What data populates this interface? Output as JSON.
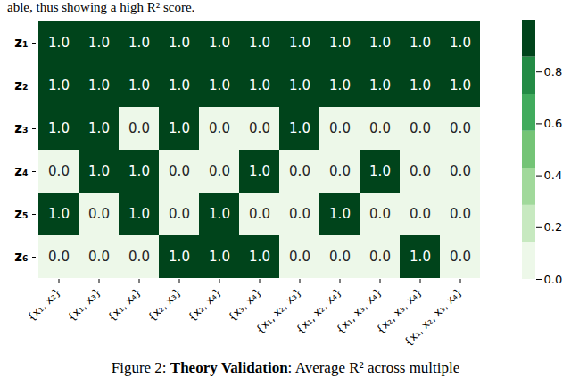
{
  "chart_data": {
    "type": "heatmap",
    "annotations": [
      "able, thus showing a high R² score."
    ],
    "caption": [
      {
        "text": "Figure 2: ",
        "bold": false
      },
      {
        "text": "Theory Validation",
        "bold": true
      },
      {
        "text": ": Average R² across multiple",
        "bold": false
      }
    ],
    "rows": [
      "z₁",
      "z₂",
      "z₃",
      "z₄",
      "z₅",
      "z₆"
    ],
    "columns": [
      "{x₁, x₂}",
      "{x₁, x₃}",
      "{x₁, x₄}",
      "{x₂, x₃}",
      "{x₂, x₄}",
      "{x₃, x₄}",
      "{x₁, x₂, x₃}",
      "{x₁, x₂, x₄}",
      "{x₁, x₃, x₄}",
      "{x₂, x₃, x₄}",
      "{x₁, x₂, x₃, x₄}"
    ],
    "cells": [
      [
        1,
        1,
        1,
        1,
        1,
        1,
        1,
        1,
        1,
        1,
        1
      ],
      [
        1,
        1,
        1,
        1,
        1,
        1,
        1,
        1,
        1,
        1,
        1
      ],
      [
        1,
        1,
        0,
        1,
        0,
        0,
        1,
        0,
        0,
        0,
        0
      ],
      [
        0,
        1,
        1,
        0,
        0,
        1,
        0,
        0,
        1,
        0,
        0
      ],
      [
        1,
        0,
        1,
        0,
        1,
        0,
        0,
        1,
        0,
        0,
        0
      ],
      [
        0,
        0,
        0,
        1,
        1,
        1,
        0,
        0,
        0,
        1,
        0
      ]
    ],
    "value_labels": [
      [
        "1.0",
        "1.0",
        "1.0",
        "1.0",
        "1.0",
        "1.0",
        "1.0",
        "1.0",
        "1.0",
        "1.0",
        "1.0"
      ],
      [
        "1.0",
        "1.0",
        "1.0",
        "1.0",
        "1.0",
        "1.0",
        "1.0",
        "1.0",
        "1.0",
        "1.0",
        "1.0"
      ],
      [
        "1.0",
        "1.0",
        "0.0",
        "1.0",
        "0.0",
        "0.0",
        "1.0",
        "0.0",
        "0.0",
        "0.0",
        "0.0"
      ],
      [
        "0.0",
        "1.0",
        "1.0",
        "0.0",
        "0.0",
        "1.0",
        "0.0",
        "0.0",
        "1.0",
        "0.0",
        "0.0"
      ],
      [
        "1.0",
        "0.0",
        "1.0",
        "0.0",
        "1.0",
        "0.0",
        "0.0",
        "1.0",
        "0.0",
        "0.0",
        "0.0"
      ],
      [
        "0.0",
        "0.0",
        "0.0",
        "1.0",
        "1.0",
        "1.0",
        "0.0",
        "0.0",
        "0.0",
        "1.0",
        "0.0"
      ]
    ],
    "data_labels": true,
    "colorbar": {
      "range": [
        0,
        1
      ],
      "ticks": [
        {
          "value": 0,
          "label": "0.0"
        },
        {
          "value": 0.2,
          "label": "0.2"
        },
        {
          "value": 0.4,
          "label": "0.4"
        },
        {
          "value": 0.6,
          "label": "0.6"
        },
        {
          "value": 0.8,
          "label": "0.8"
        }
      ],
      "colors": [
        "#edf8e9",
        "#c7e9c0",
        "#a1d99b",
        "#74c476",
        "#41ab5d",
        "#238b45",
        "#00441b"
      ]
    }
  }
}
